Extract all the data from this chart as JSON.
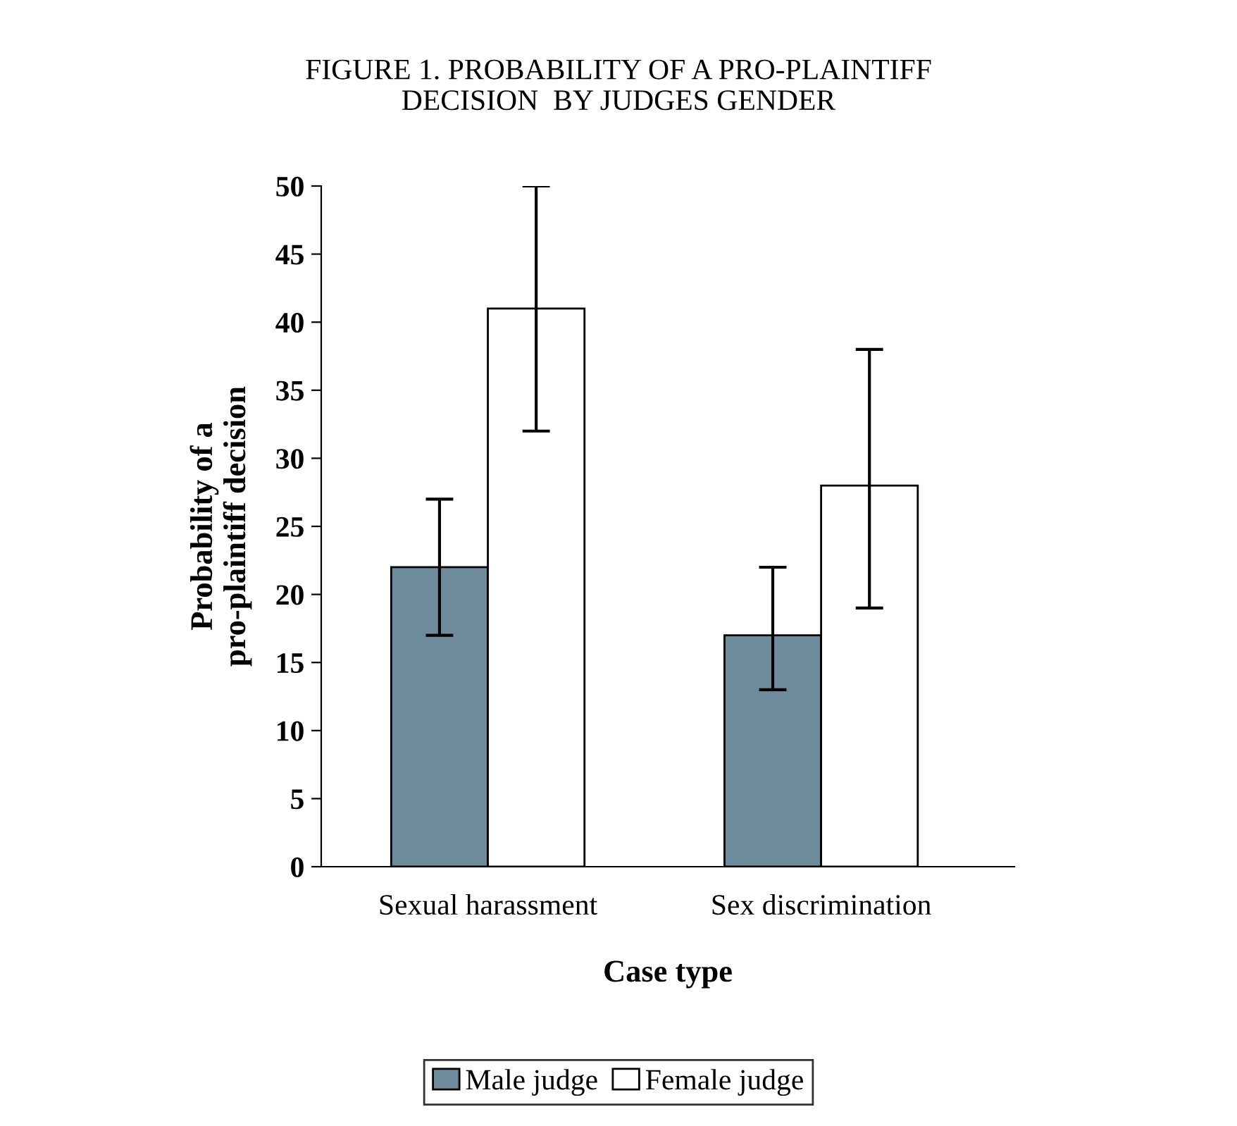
{
  "chart_data": {
    "type": "bar",
    "title": "FIGURE 1. PROBABILITY OF A PRO-PLAINTIFF\nDECISION  BY JUDGES GENDER",
    "xlabel": "Case type",
    "ylabel": "Probability of a\npro-plaintiff decision",
    "categories": [
      "Sexual harassment",
      "Sex discrimination"
    ],
    "series": [
      {
        "name": "Male judge",
        "color": "#6e8b9b",
        "values": [
          22,
          17
        ],
        "errors": [
          [
            17,
            27
          ],
          [
            13,
            22
          ]
        ]
      },
      {
        "name": "Female judge",
        "color": "#ffffff",
        "values": [
          41,
          28
        ],
        "errors": [
          [
            32,
            50
          ],
          [
            19,
            38
          ]
        ]
      }
    ],
    "ylim": [
      0,
      50
    ],
    "yticks": [
      0,
      5,
      10,
      15,
      20,
      25,
      30,
      35,
      40,
      45,
      50
    ],
    "grid": false,
    "legend": "bottom"
  }
}
